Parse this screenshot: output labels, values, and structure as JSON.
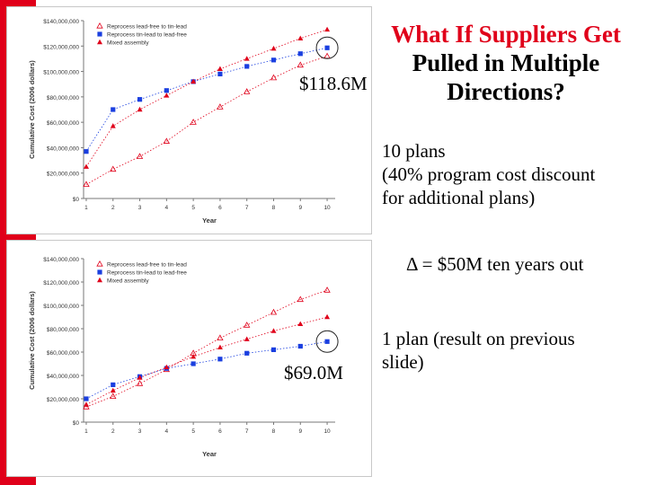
{
  "slide": {
    "title_line1": "What If Suppliers Get",
    "title_line2": "Pulled in Multiple",
    "title_line3": "Directions?",
    "annotation_top": "$118.6M",
    "annotation_bottom": "$69.0M",
    "note_top_line1": "10 plans",
    "note_top_line2": "(40% program cost discount",
    "note_top_line3": "for additional plans)",
    "delta_text": "Δ = $50M ten years out",
    "note_bottom_line1": "1 plan (result on previous",
    "note_bottom_line2": "slide)"
  },
  "colors": {
    "accent": "#e0001a",
    "blue": "#1a3fe0",
    "red": "#e0001a"
  },
  "chart_data": [
    {
      "type": "line",
      "xlabel": "Year",
      "ylabel": "Cumulative Cost (2006 dollars)",
      "x": [
        1,
        2,
        3,
        4,
        5,
        6,
        7,
        8,
        9,
        10
      ],
      "ylim": [
        0,
        140000000
      ],
      "yticks": [
        "$0",
        "$20,000,000",
        "$40,000,000",
        "$60,000,000",
        "$80,000,000",
        "$100,000,000",
        "$120,000,000",
        "$140,000,000"
      ],
      "xticks": [
        "1",
        "2",
        "3",
        "4",
        "5",
        "6",
        "7",
        "8",
        "9",
        "10"
      ],
      "legend_position": "top-left",
      "grid": false,
      "series": [
        {
          "name": "Reprocess lead-free to tin-lead",
          "marker": "open-triangle",
          "color": "#e0001a",
          "values": [
            11000000,
            23000000,
            33000000,
            45000000,
            60000000,
            72000000,
            84000000,
            95000000,
            105000000,
            112000000
          ]
        },
        {
          "name": "Reprocess tin-lead to lead-free",
          "marker": "square",
          "color": "#1a3fe0",
          "values": [
            37000000,
            70000000,
            78000000,
            85000000,
            92000000,
            98000000,
            104000000,
            109000000,
            114000000,
            118600000
          ]
        },
        {
          "name": "Mixed assembly",
          "marker": "filled-triangle",
          "color": "#e0001a",
          "values": [
            25000000,
            57000000,
            70000000,
            81000000,
            92000000,
            102000000,
            110000000,
            118000000,
            126000000,
            133000000
          ]
        }
      ]
    },
    {
      "type": "line",
      "xlabel": "Year",
      "ylabel": "Cumulative Cost (2006 dollars)",
      "x": [
        1,
        2,
        3,
        4,
        5,
        6,
        7,
        8,
        9,
        10
      ],
      "ylim": [
        0,
        140000000
      ],
      "yticks": [
        "$0",
        "$20,000,000",
        "$40,000,000",
        "$60,000,000",
        "$80,000,000",
        "$100,000,000",
        "$120,000,000",
        "$140,000,000"
      ],
      "xticks": [
        "1",
        "2",
        "3",
        "4",
        "5",
        "6",
        "7",
        "8",
        "9",
        "10"
      ],
      "legend_position": "top-left",
      "grid": false,
      "series": [
        {
          "name": "Reprocess lead-free to tin-lead",
          "marker": "open-triangle",
          "color": "#e0001a",
          "values": [
            13000000,
            22000000,
            33000000,
            45000000,
            59000000,
            72000000,
            83000000,
            94000000,
            105000000,
            113000000
          ]
        },
        {
          "name": "Reprocess tin-lead to lead-free",
          "marker": "square",
          "color": "#1a3fe0",
          "values": [
            20000000,
            32000000,
            39000000,
            46000000,
            50000000,
            54000000,
            59000000,
            62000000,
            65000000,
            69000000
          ]
        },
        {
          "name": "Mixed assembly",
          "marker": "filled-triangle",
          "color": "#e0001a",
          "values": [
            15000000,
            27000000,
            38000000,
            47000000,
            56000000,
            64000000,
            71000000,
            78000000,
            84000000,
            90000000
          ]
        }
      ]
    }
  ]
}
